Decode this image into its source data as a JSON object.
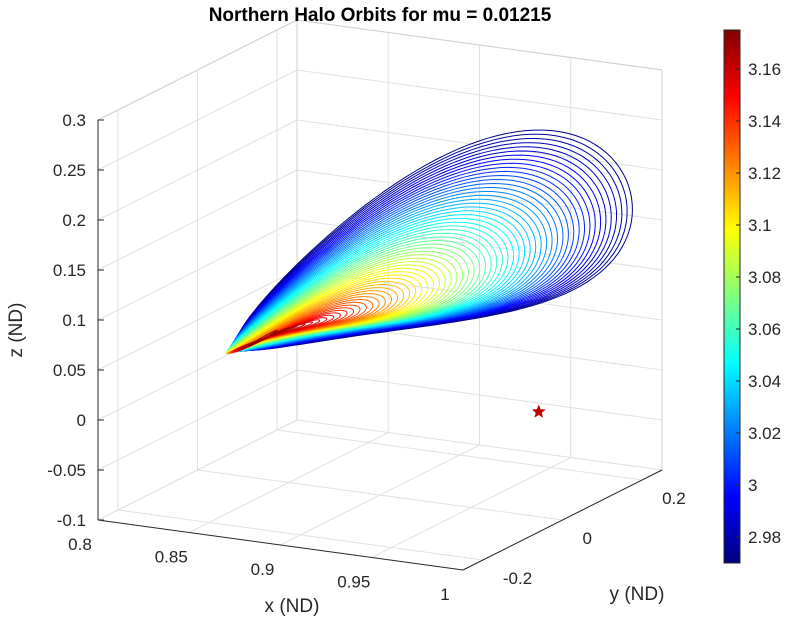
{
  "chart_data": {
    "type": "line",
    "title": "Northern Halo Orbits for mu = 0.01215",
    "xlabel": "x (ND)",
    "ylabel": "y (ND)",
    "zlabel": "z (ND)",
    "xlim": [
      0.8,
      1.0
    ],
    "ylim": [
      -0.25,
      0.25
    ],
    "zlim": [
      -0.1,
      0.3
    ],
    "x_ticks": [
      "0.8",
      "0.85",
      "0.9",
      "0.95",
      "1"
    ],
    "y_ticks": [
      "-0.2",
      "0",
      "0.2"
    ],
    "z_ticks": [
      "-0.1",
      "-0.05",
      "0",
      "0.05",
      "0.1",
      "0.15",
      "0.2",
      "0.25",
      "0.3"
    ],
    "grid": true,
    "colormap": "jet",
    "colorbar": {
      "range": [
        2.97,
        3.175
      ],
      "ticks": [
        "2.98",
        "3",
        "3.02",
        "3.04",
        "3.06",
        "3.08",
        "3.1",
        "3.12",
        "3.14",
        "3.16"
      ]
    },
    "family": {
      "orbit_count": 60,
      "jacobi_constant_range": [
        2.972,
        3.172
      ],
      "anchor_orbit": {
        "x": 0.836,
        "y": 0.0,
        "z": 0.035,
        "jacobi": 3.172
      },
      "largest_orbit": {
        "x_center": 0.93,
        "x_amplitude": 0.06,
        "y_amplitude": 0.2,
        "z_max": 0.27,
        "jacobi": 2.972
      }
    },
    "marker": {
      "symbol": "star",
      "color": "#c00000",
      "x": 0.987,
      "y": 0.0,
      "z": 0.005
    }
  }
}
